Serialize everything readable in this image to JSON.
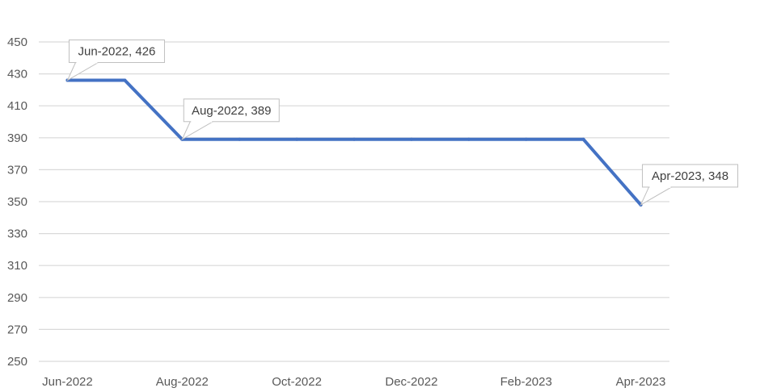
{
  "chart_data": {
    "type": "line",
    "title": "",
    "xlabel": "",
    "ylabel": "",
    "ylim": [
      250,
      450
    ],
    "yticks": [
      250,
      270,
      290,
      310,
      330,
      350,
      370,
      390,
      410,
      430,
      450
    ],
    "grid": true,
    "legend": "none",
    "x": [
      "Jun-2022",
      "Jul-2022",
      "Aug-2022",
      "Sep-2022",
      "Oct-2022",
      "Nov-2022",
      "Dec-2022",
      "Jan-2023",
      "Feb-2023",
      "Mar-2023",
      "Apr-2023"
    ],
    "xtick_labels": [
      "Jun-2022",
      "Aug-2022",
      "Oct-2022",
      "Dec-2022",
      "Feb-2023",
      "Apr-2023"
    ],
    "series": [
      {
        "values": [
          426,
          426,
          389,
          389,
          389,
          389,
          389,
          389,
          389,
          389,
          348
        ],
        "color": "#4472C4"
      }
    ],
    "annotations": [
      {
        "text": "Jun-2022, 426",
        "x": "Jun-2022",
        "y": 426
      },
      {
        "text": "Aug-2022, 389",
        "x": "Aug-2022",
        "y": 389
      },
      {
        "text": "Apr-2023, 348",
        "x": "Apr-2023",
        "y": 348
      }
    ]
  }
}
